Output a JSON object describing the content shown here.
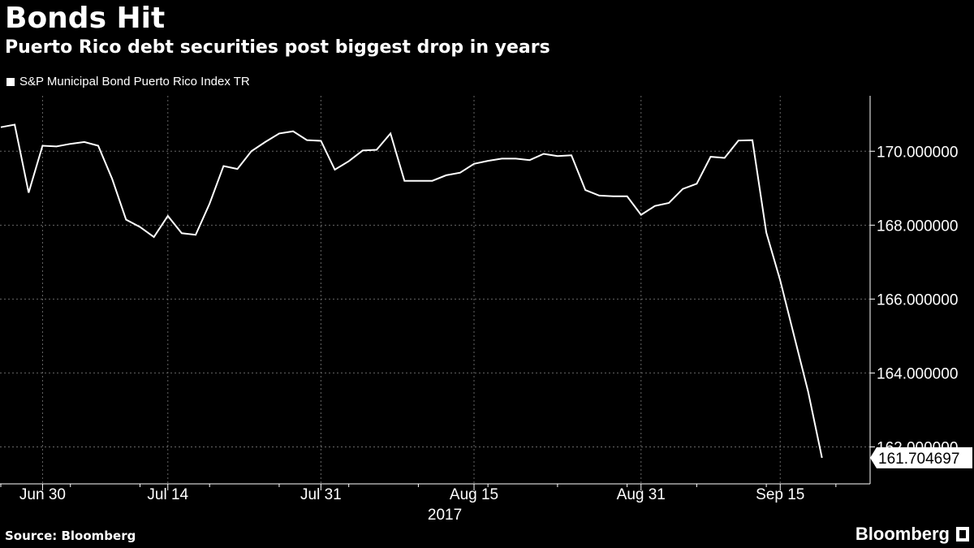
{
  "chart_data": {
    "type": "line",
    "title": "Bonds Hit",
    "subtitle": "Puerto Rico debt securities post biggest drop in years",
    "legend": "S&P Municipal Bond Puerto Rico Index TR",
    "year_label": "2017",
    "x_ticks": [
      "Jun 30",
      "Jul 14",
      "Jul 31",
      "Aug 15",
      "Aug 31",
      "Sep 15"
    ],
    "y_ticks": [
      "170.000000",
      "168.000000",
      "166.000000",
      "164.000000",
      "162.000000"
    ],
    "ylim": [
      161.0,
      171.5
    ],
    "last_value_label": "161.704697",
    "grid": true,
    "series": [
      {
        "name": "S&P Municipal Bond Puerto Rico Index TR",
        "color": "#ffffff",
        "dates": [
          "Jun 27",
          "Jun 28",
          "Jun 29",
          "Jun 30",
          "Jul 3",
          "Jul 5",
          "Jul 6",
          "Jul 7",
          "Jul 10",
          "Jul 11",
          "Jul 12",
          "Jul 13",
          "Jul 14",
          "Jul 17",
          "Jul 18",
          "Jul 19",
          "Jul 20",
          "Jul 21",
          "Jul 24",
          "Jul 25",
          "Jul 26",
          "Jul 27",
          "Jul 28",
          "Jul 31",
          "Aug 1",
          "Aug 2",
          "Aug 3",
          "Aug 4",
          "Aug 7",
          "Aug 8",
          "Aug 9",
          "Aug 10",
          "Aug 11",
          "Aug 14",
          "Aug 15",
          "Aug 16",
          "Aug 17",
          "Aug 18",
          "Aug 21",
          "Aug 22",
          "Aug 23",
          "Aug 24",
          "Aug 25",
          "Aug 28",
          "Aug 29",
          "Aug 30",
          "Aug 31",
          "Sep 1",
          "Sep 5",
          "Sep 6",
          "Sep 7",
          "Sep 8",
          "Sep 11",
          "Sep 12",
          "Sep 13",
          "Sep 14",
          "Sep 15",
          "Sep 18",
          "Sep 19",
          "Sep 20",
          "Sep 21",
          "Sep 22"
        ],
        "values": [
          170.65,
          170.72,
          168.88,
          170.15,
          170.13,
          170.2,
          170.25,
          170.15,
          169.25,
          168.15,
          167.95,
          167.68,
          168.25,
          167.78,
          167.74,
          168.58,
          169.6,
          169.52,
          170.0,
          170.25,
          170.48,
          170.54,
          170.3,
          170.28,
          169.5,
          169.73,
          170.02,
          170.04,
          170.48,
          169.2,
          169.2,
          169.2,
          169.35,
          169.42,
          169.66,
          169.74,
          169.8,
          169.8,
          169.76,
          169.93,
          169.87,
          169.89,
          168.95,
          168.8,
          168.78,
          168.78,
          168.28,
          168.52,
          168.6,
          168.98,
          169.12,
          169.85,
          169.82,
          170.29,
          170.3,
          167.8,
          166.5,
          165.0,
          163.5,
          161.704697,
          null,
          null
        ]
      }
    ]
  },
  "source": "Source: Bloomberg",
  "brand": "Bloomberg"
}
